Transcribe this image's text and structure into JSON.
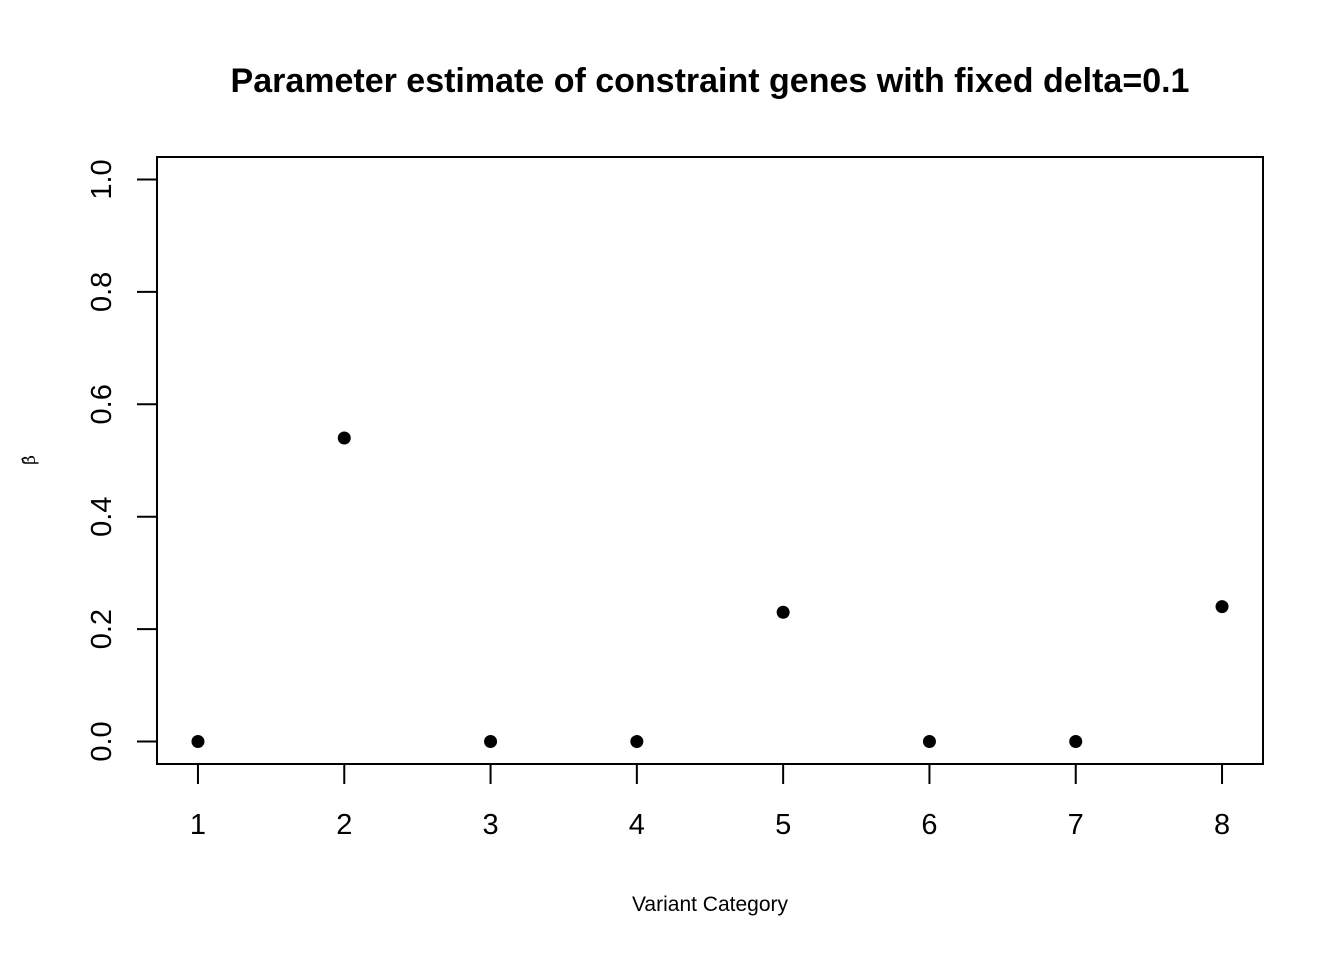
{
  "chart_data": {
    "type": "scatter",
    "title": "Parameter estimate of constraint genes with fixed delta=0.1",
    "xlabel": "Variant Category",
    "ylabel": "β̂",
    "x": [
      1,
      2,
      3,
      4,
      5,
      6,
      7,
      8
    ],
    "y": [
      0.0,
      0.54,
      0.0,
      0.0,
      0.23,
      0.0,
      0.0,
      0.24
    ],
    "xlim": [
      0.72,
      8.28
    ],
    "ylim": [
      -0.04,
      1.04
    ],
    "x_ticks": [
      1,
      2,
      3,
      4,
      5,
      6,
      7,
      8
    ],
    "x_tick_labels": [
      "1",
      "2",
      "3",
      "4",
      "5",
      "6",
      "7",
      "8"
    ],
    "y_ticks": [
      0.0,
      0.2,
      0.4,
      0.6,
      0.8,
      1.0
    ],
    "y_tick_labels": [
      "0.0",
      "0.2",
      "0.4",
      "0.6",
      "0.8",
      "1.0"
    ],
    "marker": "filled-circle",
    "point_color": "#000000",
    "grid": false,
    "legend": "none"
  }
}
